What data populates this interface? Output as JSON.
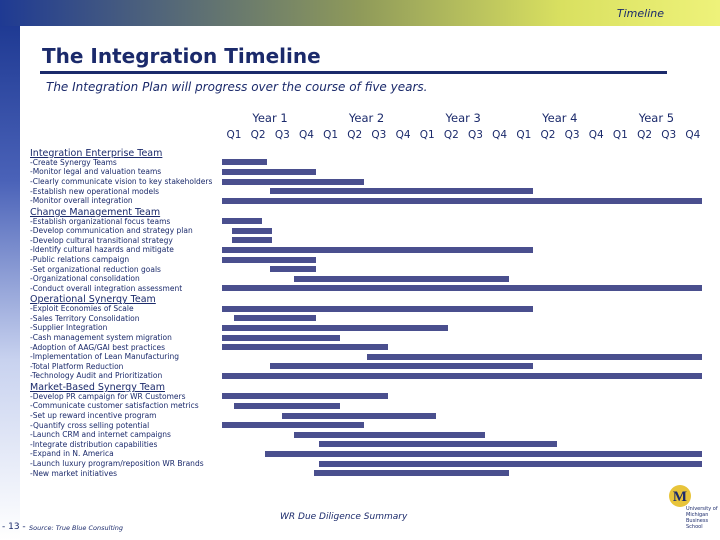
{
  "header": {
    "title": "Timeline"
  },
  "page": {
    "title": "The Integration Timeline",
    "subtitle": "The Integration Plan will progress over the course of five years."
  },
  "years": [
    "Year 1",
    "Year 2",
    "Year 3",
    "Year 4",
    "Year 5"
  ],
  "quarters": [
    "Q1",
    "Q2",
    "Q3",
    "Q4"
  ],
  "sections": [
    {
      "title": "Integration Enterprise Team",
      "tasks": [
        {
          "label": "-Create Synergy Teams",
          "start": 1,
          "end": 2
        },
        {
          "label": "-Monitor legal and valuation teams",
          "start": 1,
          "end": 4
        },
        {
          "label": "-Clearly communicate vision to key stakeholders",
          "start": 1,
          "end": 6
        },
        {
          "label": "-Establish new operational models",
          "start": 3,
          "end": 13
        },
        {
          "label": "-Monitor overall integration",
          "start": 1,
          "end": 20
        }
      ]
    },
    {
      "title": "Change Management Team",
      "tasks": [
        {
          "label": "-Establish organizational focus teams",
          "start": 1,
          "end": 1.8
        },
        {
          "label": "-Develop communication and strategy plan",
          "start": 1.4,
          "end": 2.2
        },
        {
          "label": "-Develop cultural transitional strategy",
          "start": 1.4,
          "end": 2.2
        },
        {
          "label": "-Identify cultural hazards and mitigate",
          "start": 1,
          "end": 13
        },
        {
          "label": "-Public relations campaign",
          "start": 1,
          "end": 4
        },
        {
          "label": "-Set organizational reduction goals",
          "start": 3,
          "end": 4
        },
        {
          "label": "-Organizational consolidation",
          "start": 4,
          "end": 12
        },
        {
          "label": "-Conduct overall integration assessment",
          "start": 1,
          "end": 20
        }
      ]
    },
    {
      "title": "Operational Synergy Team",
      "tasks": [
        {
          "label": "-Exploit Economies of Scale",
          "start": 1,
          "end": 13
        },
        {
          "label": "-Sales Territory Consolidation",
          "start": 1.5,
          "end": 4
        },
        {
          "label": "-Supplier Integration",
          "start": 1,
          "end": 9.5
        },
        {
          "label": "-Cash management system migration",
          "start": 1,
          "end": 5
        },
        {
          "label": "-Adoption of AAG/GAI best practices",
          "start": 1,
          "end": 7
        },
        {
          "label": "-Implementation of Lean Manufacturing",
          "start": 7,
          "end": 20
        },
        {
          "label": "-Total Platform Reduction",
          "start": 3,
          "end": 13
        },
        {
          "label": "-Technology Audit and Prioritization",
          "start": 1,
          "end": 20
        }
      ]
    },
    {
      "title": "Market-Based Synergy Team",
      "tasks": [
        {
          "label": "-Develop PR campaign for WR Customers",
          "start": 1,
          "end": 7
        },
        {
          "label": "-Communicate customer satisfaction metrics",
          "start": 1.5,
          "end": 5
        },
        {
          "label": "-Set up reward incentive program",
          "start": 3.5,
          "end": 9
        },
        {
          "label": "-Quantify cross selling potential",
          "start": 1,
          "end": 6
        },
        {
          "label": "-Launch CRM and internet campaigns",
          "start": 4,
          "end": 11
        },
        {
          "label": "-Integrate distribution capabilities",
          "start": 5,
          "end": 14
        },
        {
          "label": "-Expand in N. America",
          "start": 2.8,
          "end": 20
        },
        {
          "label": "-Launch luxury program/reposition WR Brands",
          "start": 5,
          "end": 20
        },
        {
          "label": "-New market initiatives",
          "start": 4.8,
          "end": 12
        }
      ]
    }
  ],
  "footer": {
    "summary": "WR Due Diligence Summary",
    "page_number": "- 13 -",
    "source": "Source: True Blue Consulting",
    "logo_text": "University of Michigan Business School",
    "logo_glyph": "M"
  },
  "colors": {
    "bar": "#4a4f8e",
    "text": "#1b2a6b"
  }
}
